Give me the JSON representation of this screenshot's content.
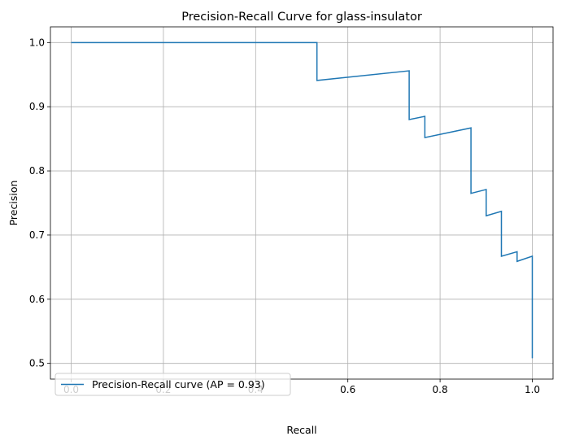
{
  "chart_data": {
    "type": "line",
    "title": "Precision-Recall Curve for glass-insulator",
    "xlabel": "Recall",
    "ylabel": "Precision",
    "xlim": [
      -0.045,
      1.045
    ],
    "ylim": [
      0.4755,
      1.0245
    ],
    "xticks": [
      0.0,
      0.2,
      0.4,
      0.6,
      0.8,
      1.0
    ],
    "xtick_labels": [
      "0.0",
      "0.2",
      "0.4",
      "0.6",
      "0.8",
      "1.0"
    ],
    "yticks": [
      0.5,
      0.6,
      0.7,
      0.8,
      0.9,
      1.0
    ],
    "ytick_labels": [
      "0.5",
      "0.6",
      "0.7",
      "0.8",
      "0.9",
      "1.0"
    ],
    "grid": true,
    "legend_position": "lower-left",
    "series": [
      {
        "name": "Precision-Recall curve (AP = 0.93)",
        "color": "#1f77b4",
        "x": [
          0.0,
          0.533,
          0.533,
          0.733,
          0.733,
          0.767,
          0.767,
          0.867,
          0.867,
          0.9,
          0.9,
          0.933,
          0.933,
          0.967,
          0.967,
          1.0,
          1.0
        ],
        "y": [
          1.0,
          1.0,
          0.941,
          0.956,
          0.88,
          0.885,
          0.852,
          0.867,
          0.765,
          0.771,
          0.73,
          0.737,
          0.667,
          0.674,
          0.659,
          0.667,
          0.508
        ]
      }
    ]
  }
}
